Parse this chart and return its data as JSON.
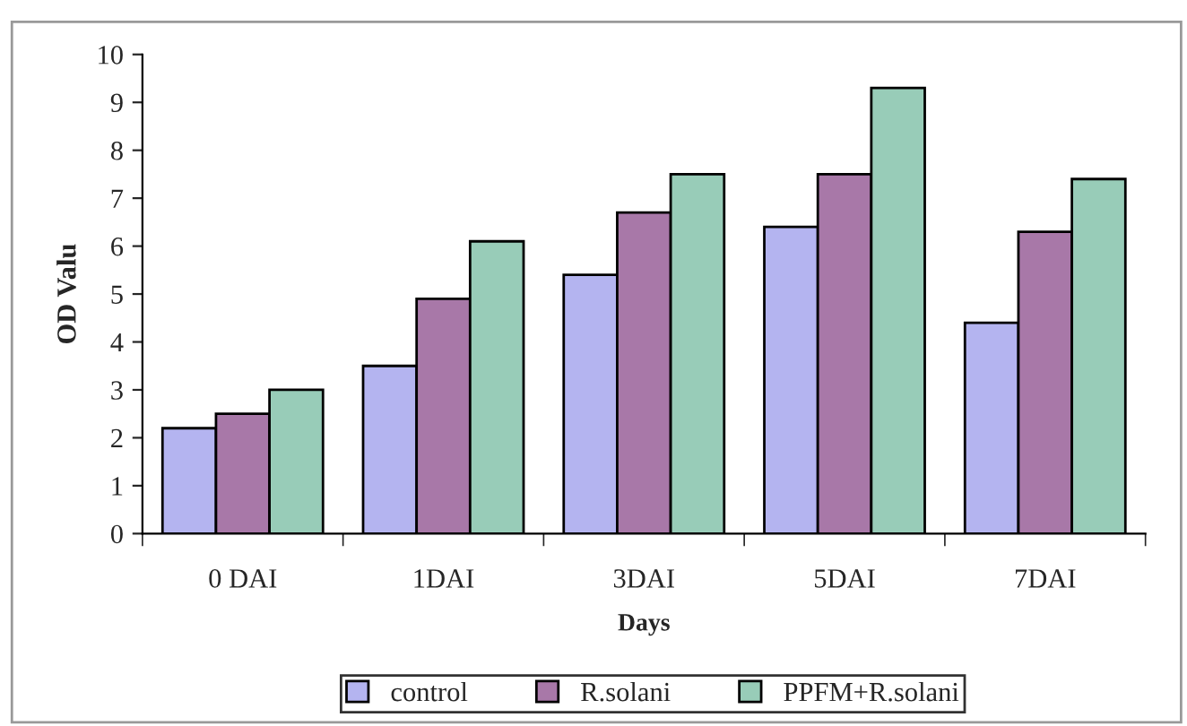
{
  "chart_data": {
    "type": "bar",
    "xlabel": "Days",
    "ylabel": "OD Valu",
    "categories": [
      "0 DAI",
      "1DAI",
      "3DAI",
      "5DAI",
      "7DAI"
    ],
    "series": [
      {
        "name": "control",
        "color": "#b4b4f0",
        "values": [
          2.2,
          3.5,
          5.4,
          6.4,
          4.4
        ]
      },
      {
        "name": "R.solani",
        "color": "#a878a8",
        "values": [
          2.5,
          4.9,
          6.7,
          7.5,
          6.3
        ]
      },
      {
        "name": "PPFM+R.solani",
        "color": "#98ccb8",
        "values": [
          3.0,
          6.1,
          7.5,
          9.3,
          7.4
        ]
      }
    ],
    "ylim": [
      0,
      10
    ],
    "yticks": [
      0,
      1,
      2,
      3,
      4,
      5,
      6,
      7,
      8,
      9,
      10
    ],
    "grid": false,
    "legend": "bottom"
  }
}
